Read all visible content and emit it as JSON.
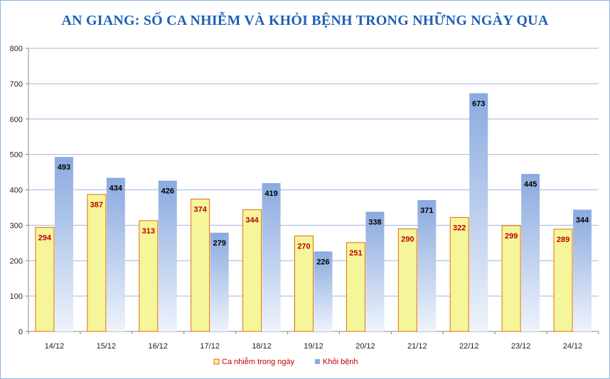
{
  "chart_data": {
    "type": "bar",
    "title": "AN GIANG: SỐ CA NHIỄM VÀ KHỎI BỆNH TRONG NHỮNG NGÀY QUA",
    "xlabel": "",
    "ylabel": "",
    "ylim": [
      0,
      800
    ],
    "yticks": [
      0,
      100,
      200,
      300,
      400,
      500,
      600,
      700,
      800
    ],
    "grid": true,
    "legend_position": "bottom",
    "categories": [
      "14/12",
      "15/12",
      "16/12",
      "17/12",
      "18/12",
      "19/12",
      "20/12",
      "21/12",
      "22/12",
      "23/12",
      "24/12"
    ],
    "series": [
      {
        "name": "Ca nhiễm trong ngày",
        "values": [
          294,
          387,
          313,
          374,
          344,
          270,
          251,
          290,
          322,
          299,
          289
        ],
        "color": "#f5f59a",
        "border_color": "#e46c0a",
        "label_color": "#c00000"
      },
      {
        "name": "Khỏi bệnh",
        "values": [
          493,
          434,
          426,
          279,
          419,
          226,
          338,
          371,
          673,
          445,
          344
        ],
        "color": "#95b3e0",
        "label_color": "#000000"
      }
    ]
  }
}
